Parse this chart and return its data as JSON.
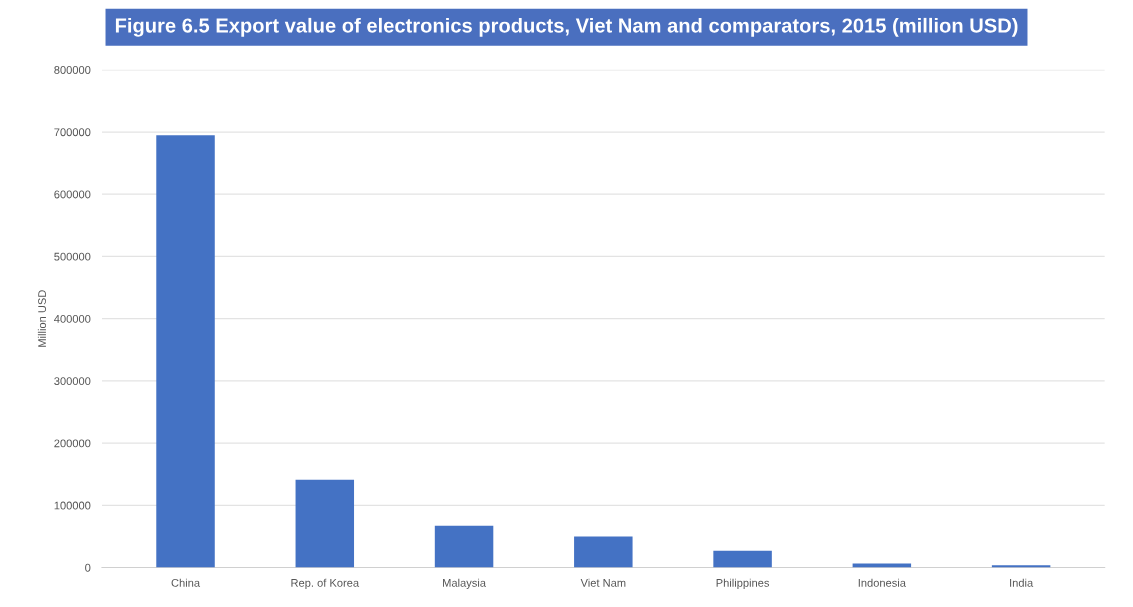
{
  "chart_data": {
    "type": "bar",
    "title": "Figure 6.5 Export value of electronics products, Viet Nam and comparators, 2015 (million USD)",
    "ylabel": "Million USD",
    "categories": [
      "China",
      "Rep. of Korea",
      "Malaysia",
      "Viet Nam",
      "Philippines",
      "Indonesia",
      "India"
    ],
    "values": [
      695000,
      141000,
      67000,
      50000,
      27000,
      6500,
      3500
    ],
    "color": "#4472c4",
    "ylim": [
      0,
      800000
    ],
    "yticks": [
      0,
      100000,
      200000,
      300000,
      400000,
      500000,
      600000,
      700000,
      800000
    ],
    "grid": "y"
  }
}
